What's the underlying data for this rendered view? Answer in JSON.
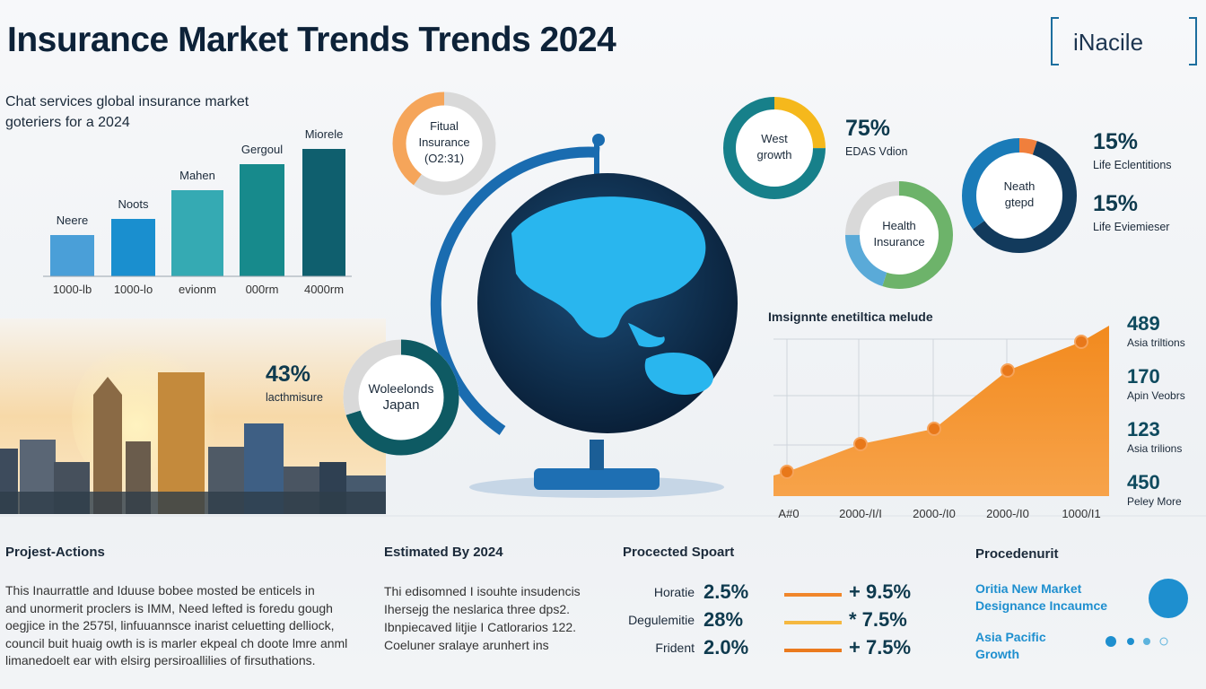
{
  "title": "Insurance Market Trends Trends 2024",
  "logo": "iNacile",
  "chart_data": [
    {
      "type": "bar",
      "title": "Chat services global insurance market goteriers for a 2024",
      "categories": [
        "1000-lb",
        "1000-lo",
        "evionm",
        "000rm",
        "4000rm"
      ],
      "labels": [
        "Neere",
        "Noots",
        "Mahen",
        "Gergoul",
        "Miorele"
      ],
      "values": [
        46,
        64,
        96,
        125,
        142
      ],
      "colors": [
        "#4a9fd8",
        "#1a8fcf",
        "#35aab3",
        "#178a8c",
        "#0f5f6e"
      ]
    },
    {
      "type": "area",
      "title": "Imsignnte enetiltica melude",
      "categories": [
        "A#0",
        "2000-/I/I",
        "2000-/I0",
        "2000-/I0",
        "1000/I1"
      ],
      "values": [
        27,
        58,
        75,
        140,
        172
      ],
      "color": "#f28a1e"
    }
  ],
  "area_stats": [
    {
      "value": "489",
      "label": "Asia triltions"
    },
    {
      "value": "170",
      "label": "Apin Veobrs"
    },
    {
      "value": "123",
      "label": "Asia trilions"
    },
    {
      "value": "450",
      "label": "Peley More"
    }
  ],
  "donuts": [
    {
      "lines": [
        "Fitual",
        "Insurance",
        "(O2:31)"
      ],
      "values": [
        60,
        40
      ],
      "colors": [
        "#d9d9d9",
        "#f5a55a"
      ]
    },
    {
      "lines": [
        "West",
        "growth"
      ],
      "values": [
        25,
        75
      ],
      "colors": [
        "#f5b81c",
        "#17808a"
      ]
    },
    {
      "lines": [
        "Health",
        "Insurance"
      ],
      "values": [
        55,
        20,
        25
      ],
      "colors": [
        "#6db36a",
        "#5aaad8",
        "#d9d9d9"
      ]
    },
    {
      "lines": [
        "Neath",
        "gtepd"
      ],
      "values": [
        5,
        60,
        35
      ],
      "colors": [
        "#f07f3c",
        "#123a5c",
        "#1a7bb8"
      ]
    },
    {
      "lines": [
        "Woleelonds",
        "Japan"
      ],
      "values": [
        70,
        30
      ],
      "colors": [
        "#0e5a63",
        "#d9d9d9"
      ]
    }
  ],
  "stats": [
    {
      "value": "75%",
      "label": "EDAS Vdion"
    },
    {
      "value": "15%",
      "label": "Life Eclentitions"
    },
    {
      "value": "15%",
      "label": "Life Eviemieser"
    },
    {
      "value": "43%",
      "label": "lacthmisure"
    }
  ],
  "sections": {
    "actions": {
      "heading": "Projest-Actions",
      "lines": [
        "This Inaurrattle and Iduuse bobee mosted be enticels in",
        "and unormerit proclers is IMM, Need lefted is foredu gough",
        "oegjice in the 2575l, linfuuannsce inarist celuetting delliock,",
        "council buit huaig owth is is marler ekpeal ch doote lmre anml",
        "limanedoelt ear with elsirg persiroallilies of firsuthations."
      ]
    },
    "estimated": {
      "heading": "Estimated By 2024",
      "lines": [
        "Thi edisomned I isouhte insudencis",
        "Ihersejg the neslarica three dps2.",
        "Ibnpiecaved litjie I Catlorarios 122.",
        "Coeluner sralaye arunhert ins"
      ]
    },
    "projected": {
      "heading": "Procected Spoart",
      "rows": [
        {
          "name": "Horatie",
          "value": "2.5%",
          "change": "+ 9.5%",
          "color": "#f0862a"
        },
        {
          "name": "Degulemitie",
          "value": "28%",
          "change": "* 7.5%",
          "color": "#f5b840"
        },
        {
          "name": "Frident",
          "value": "2.0%",
          "change": "+ 7.5%",
          "color": "#ea7a1e"
        }
      ]
    },
    "procedure": {
      "heading": "Procedenurit",
      "items": [
        [
          "Oritia New Market",
          "Designance Incaumce"
        ],
        [
          "Asia Pacific",
          "Growth"
        ]
      ]
    }
  }
}
